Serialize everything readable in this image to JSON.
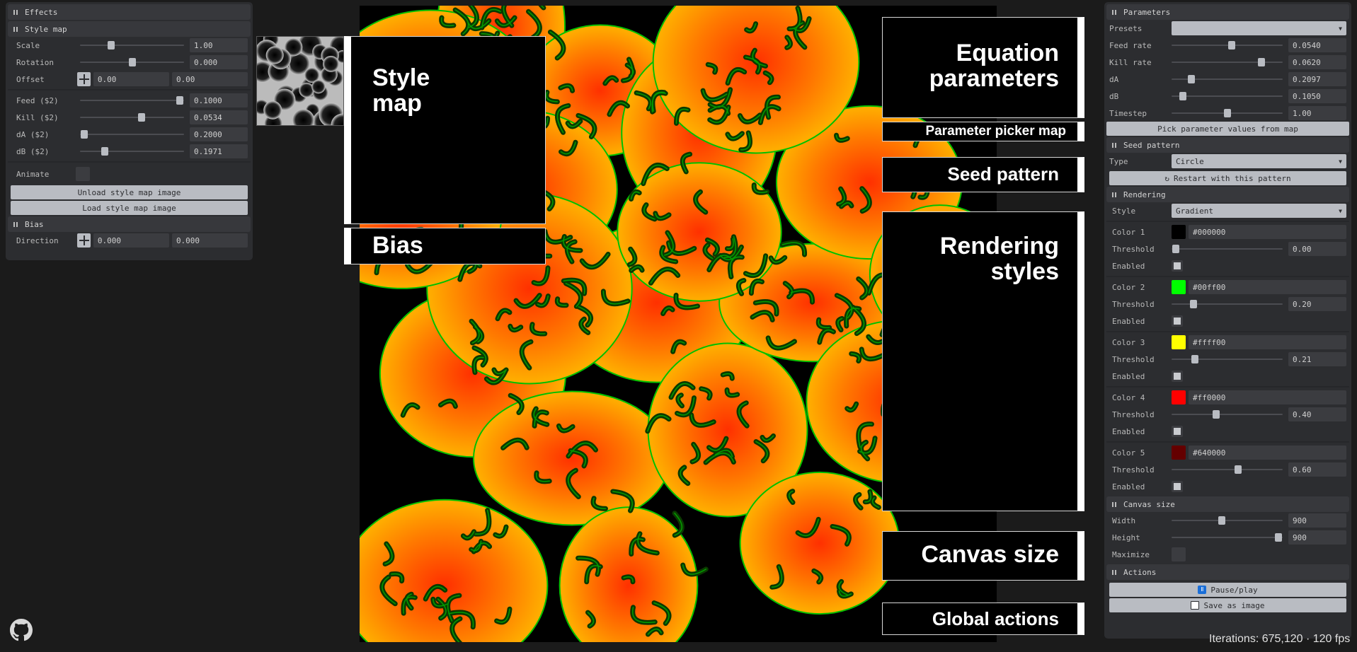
{
  "effects": {
    "title": "Effects",
    "style_map": {
      "title": "Style map",
      "scale": {
        "label": "Scale",
        "value": "1.00",
        "fraction": 0.3
      },
      "rotation": {
        "label": "Rotation",
        "value": "0.000",
        "fraction": 0.5
      },
      "offset": {
        "label": "Offset",
        "x": "0.00",
        "y": "0.00"
      },
      "feed": {
        "label": "Feed ($2)",
        "value": "0.1000",
        "fraction": 1.0
      },
      "kill": {
        "label": "Kill ($2)",
        "value": "0.0534",
        "fraction": 0.59
      },
      "da": {
        "label": "dA ($2)",
        "value": "0.2000",
        "fraction": 0.0
      },
      "db": {
        "label": "dB ($2)",
        "value": "0.1971",
        "fraction": 0.24
      },
      "animate": {
        "label": "Animate"
      },
      "unload_label": "Unload style map image",
      "load_label": "Load style map image"
    },
    "bias": {
      "title": "Bias",
      "direction": {
        "label": "Direction",
        "x": "0.000",
        "y": "0.000"
      }
    }
  },
  "parameters": {
    "title": "Parameters",
    "presets": {
      "label": "Presets",
      "value": ""
    },
    "feed_rate": {
      "label": "Feed rate",
      "value": "0.0540",
      "fraction": 0.54
    },
    "kill_rate": {
      "label": "Kill rate",
      "value": "0.0620",
      "fraction": 0.81
    },
    "da": {
      "label": "dA",
      "value": "0.2097",
      "fraction": 0.18
    },
    "db": {
      "label": "dB",
      "value": "0.1050",
      "fraction": 0.1
    },
    "timestep": {
      "label": "Timestep",
      "value": "1.00",
      "fraction": 0.5
    },
    "pick_label": "Pick parameter values from map"
  },
  "seed_pattern": {
    "title": "Seed pattern",
    "type": {
      "label": "Type",
      "value": "Circle"
    },
    "restart_label": "Restart with this pattern"
  },
  "rendering": {
    "title": "Rendering",
    "style": {
      "label": "Style",
      "value": "Gradient"
    },
    "colors": [
      {
        "label": "Color 1",
        "hex": "#000000",
        "swatch": "#000000",
        "threshold_label": "Threshold",
        "threshold": "0.00",
        "fraction": 0.0,
        "enabled_label": "Enabled"
      },
      {
        "label": "Color 2",
        "hex": "#00ff00",
        "swatch": "#00ff00",
        "threshold_label": "Threshold",
        "threshold": "0.20",
        "fraction": 0.2,
        "enabled_label": "Enabled"
      },
      {
        "label": "Color 3",
        "hex": "#ffff00",
        "swatch": "#ffff00",
        "threshold_label": "Threshold",
        "threshold": "0.21",
        "fraction": 0.21,
        "enabled_label": "Enabled"
      },
      {
        "label": "Color 4",
        "hex": "#ff0000",
        "swatch": "#ff0000",
        "threshold_label": "Threshold",
        "threshold": "0.40",
        "fraction": 0.4,
        "enabled_label": "Enabled"
      },
      {
        "label": "Color 5",
        "hex": "#640000",
        "swatch": "#640000",
        "threshold_label": "Threshold",
        "threshold": "0.60",
        "fraction": 0.6,
        "enabled_label": "Enabled"
      }
    ]
  },
  "canvas_size": {
    "title": "Canvas size",
    "width": {
      "label": "Width",
      "value": "900",
      "fraction": 0.45
    },
    "height": {
      "label": "Height",
      "value": "900",
      "fraction": 1.0
    },
    "maximize": {
      "label": "Maximize"
    }
  },
  "actions": {
    "title": "Actions",
    "pause_label": "Pause/play",
    "save_label": "Save as image"
  },
  "annotations": {
    "style_map": "Style\nmap",
    "bias": "Bias",
    "equation": "Equation\nparameters",
    "picker": "Parameter picker map",
    "seed": "Seed pattern",
    "rendering": "Rendering\nstyles",
    "canvas": "Canvas size",
    "global": "Global actions"
  },
  "status": {
    "iterations": "Iterations: 675,120 · 120 fps"
  },
  "icons": {
    "github": "github-icon",
    "pause": "pause-icon",
    "save": "save-icon",
    "restart": "restart-icon"
  }
}
